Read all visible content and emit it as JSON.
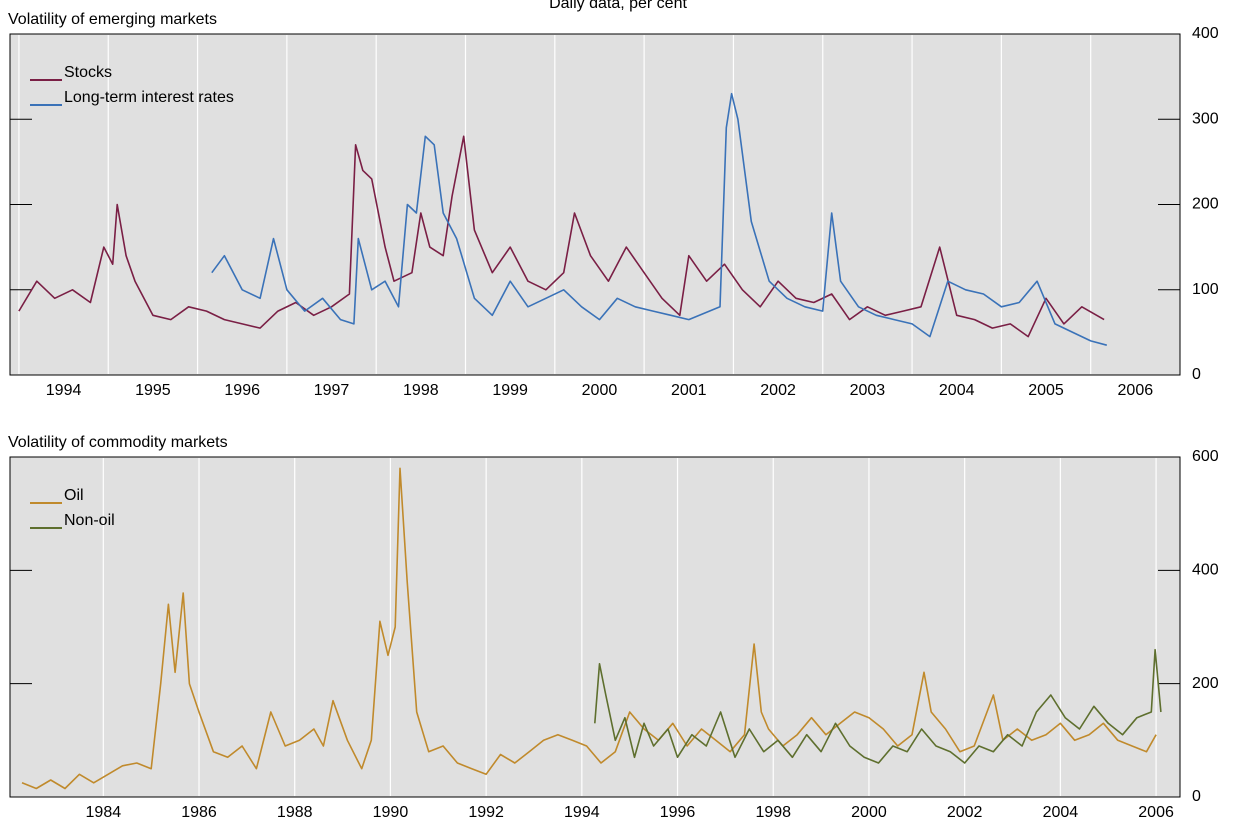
{
  "title": "Daily data, per cent",
  "chart_data": [
    {
      "type": "line",
      "title": "Volatility of emerging markets",
      "xlim": [
        1993.9,
        2007.0
      ],
      "xticks": [
        1994,
        1995,
        1996,
        1997,
        1998,
        1999,
        2000,
        2001,
        2002,
        2003,
        2004,
        2005,
        2006
      ],
      "tick_label_position": "between",
      "ylim": [
        0,
        400
      ],
      "yticks": [
        0,
        100,
        200,
        300,
        400
      ],
      "grid": "vertical",
      "legend": "upper left",
      "series": [
        {
          "name": "Stocks",
          "color": "#7a1f45",
          "x": [
            1994.0,
            1994.2,
            1994.4,
            1994.6,
            1994.8,
            1994.95,
            1995.05,
            1995.1,
            1995.2,
            1995.3,
            1995.5,
            1995.7,
            1995.9,
            1996.1,
            1996.3,
            1996.5,
            1996.7,
            1996.9,
            1997.1,
            1997.3,
            1997.5,
            1997.7,
            1997.77,
            1997.85,
            1997.95,
            1998.1,
            1998.2,
            1998.4,
            1998.5,
            1998.6,
            1998.75,
            1998.85,
            1998.98,
            1999.1,
            1999.3,
            1999.5,
            1999.7,
            1999.9,
            2000.1,
            2000.22,
            2000.4,
            2000.6,
            2000.8,
            2001.0,
            2001.2,
            2001.4,
            2001.5,
            2001.7,
            2001.9,
            2002.1,
            2002.3,
            2002.5,
            2002.7,
            2002.9,
            2003.1,
            2003.3,
            2003.5,
            2003.7,
            2003.9,
            2004.1,
            2004.31,
            2004.5,
            2004.7,
            2004.9,
            2005.1,
            2005.3,
            2005.5,
            2005.7,
            2005.9,
            2006.15
          ],
          "values": [
            75,
            110,
            90,
            100,
            85,
            150,
            130,
            200,
            140,
            110,
            70,
            65,
            80,
            75,
            65,
            60,
            55,
            75,
            85,
            70,
            80,
            95,
            270,
            240,
            230,
            150,
            110,
            120,
            190,
            150,
            140,
            210,
            280,
            170,
            120,
            150,
            110,
            100,
            120,
            190,
            140,
            110,
            150,
            120,
            90,
            70,
            140,
            110,
            130,
            100,
            80,
            110,
            90,
            85,
            95,
            65,
            80,
            70,
            75,
            80,
            150,
            70,
            65,
            55,
            60,
            45,
            90,
            60,
            80,
            65
          ]
        },
        {
          "name": "Long-term interest rates",
          "color": "#3a72b8",
          "x": [
            1996.16,
            1996.3,
            1996.5,
            1996.7,
            1996.85,
            1997.0,
            1997.2,
            1997.4,
            1997.6,
            1997.75,
            1997.8,
            1997.95,
            1998.1,
            1998.25,
            1998.35,
            1998.45,
            1998.55,
            1998.65,
            1998.75,
            1998.9,
            1999.1,
            1999.3,
            1999.5,
            1999.7,
            1999.9,
            2000.1,
            2000.3,
            2000.5,
            2000.7,
            2000.9,
            2001.1,
            2001.3,
            2001.5,
            2001.85,
            2001.92,
            2001.98,
            2002.05,
            2002.2,
            2002.4,
            2002.6,
            2002.8,
            2003.0,
            2003.1,
            2003.2,
            2003.4,
            2003.6,
            2003.8,
            2004.0,
            2004.2,
            2004.4,
            2004.6,
            2004.8,
            2005.0,
            2005.2,
            2005.4,
            2005.6,
            2005.8,
            2006.0,
            2006.18
          ],
          "values": [
            120,
            140,
            100,
            90,
            160,
            100,
            75,
            90,
            65,
            60,
            160,
            100,
            110,
            80,
            200,
            190,
            280,
            270,
            190,
            160,
            90,
            70,
            110,
            80,
            90,
            100,
            80,
            65,
            90,
            80,
            75,
            70,
            65,
            80,
            290,
            330,
            300,
            180,
            110,
            90,
            80,
            75,
            190,
            110,
            80,
            70,
            65,
            60,
            45,
            110,
            100,
            95,
            80,
            85,
            110,
            60,
            50,
            40,
            35
          ]
        }
      ]
    },
    {
      "type": "line",
      "title": "Volatility of commodity markets",
      "xlim": [
        1982.05,
        2006.5
      ],
      "xticks": [
        1984,
        1986,
        1988,
        1990,
        1992,
        1994,
        1996,
        1998,
        2000,
        2002,
        2004,
        2006
      ],
      "tick_label_position": "on",
      "ylim": [
        0,
        600
      ],
      "yticks": [
        0,
        200,
        400,
        600
      ],
      "grid": "vertical",
      "legend": "upper left",
      "series": [
        {
          "name": "Oil",
          "color": "#c08a2c",
          "x": [
            1982.3,
            1982.6,
            1982.9,
            1983.2,
            1983.5,
            1983.8,
            1984.1,
            1984.4,
            1984.7,
            1985.0,
            1985.2,
            1985.36,
            1985.5,
            1985.67,
            1985.8,
            1986.0,
            1986.3,
            1986.6,
            1986.9,
            1987.2,
            1987.5,
            1987.8,
            1988.1,
            1988.4,
            1988.6,
            1988.8,
            1989.1,
            1989.4,
            1989.6,
            1989.78,
            1989.95,
            1990.1,
            1990.2,
            1990.35,
            1990.55,
            1990.8,
            1991.1,
            1991.4,
            1991.7,
            1992.0,
            1992.3,
            1992.6,
            1992.9,
            1993.2,
            1993.5,
            1993.8,
            1994.1,
            1994.4,
            1994.7,
            1995.0,
            1995.3,
            1995.6,
            1995.9,
            1996.2,
            1996.5,
            1996.8,
            1997.1,
            1997.4,
            1997.6,
            1997.75,
            1997.9,
            1998.2,
            1998.5,
            1998.8,
            1999.1,
            1999.4,
            1999.7,
            2000.0,
            2000.3,
            2000.6,
            2000.9,
            2001.15,
            2001.3,
            2001.6,
            2001.9,
            2002.2,
            2002.6,
            2002.8,
            2003.1,
            2003.4,
            2003.7,
            2004.0,
            2004.3,
            2004.6,
            2004.9,
            2005.2,
            2005.5,
            2005.8,
            2006.0
          ],
          "values": [
            25,
            15,
            30,
            15,
            40,
            25,
            40,
            55,
            60,
            50,
            200,
            340,
            220,
            360,
            200,
            150,
            80,
            70,
            90,
            50,
            150,
            90,
            100,
            120,
            90,
            170,
            100,
            50,
            100,
            310,
            250,
            300,
            580,
            380,
            150,
            80,
            90,
            60,
            50,
            40,
            75,
            60,
            80,
            100,
            110,
            100,
            90,
            60,
            80,
            150,
            120,
            100,
            130,
            90,
            120,
            100,
            80,
            110,
            270,
            150,
            120,
            90,
            110,
            140,
            110,
            130,
            150,
            140,
            120,
            90,
            110,
            220,
            150,
            120,
            80,
            90,
            180,
            100,
            120,
            100,
            110,
            130,
            100,
            110,
            130,
            100,
            90,
            80,
            110
          ]
        },
        {
          "name": "Non-oil",
          "color": "#5e6f2e",
          "x": [
            1994.27,
            1994.37,
            1994.5,
            1994.7,
            1994.9,
            1995.1,
            1995.3,
            1995.5,
            1995.8,
            1996.0,
            1996.3,
            1996.6,
            1996.9,
            1997.2,
            1997.5,
            1997.8,
            1998.1,
            1998.4,
            1998.7,
            1999.0,
            1999.3,
            1999.6,
            1999.9,
            2000.2,
            2000.5,
            2000.8,
            2001.1,
            2001.4,
            2001.7,
            2002.0,
            2002.3,
            2002.6,
            2002.9,
            2003.2,
            2003.5,
            2003.8,
            2004.1,
            2004.4,
            2004.7,
            2005.0,
            2005.3,
            2005.6,
            2005.9,
            2005.98,
            2006.1
          ],
          "values": [
            130,
            235,
            180,
            100,
            140,
            70,
            130,
            90,
            120,
            70,
            110,
            90,
            150,
            70,
            120,
            80,
            100,
            70,
            110,
            80,
            130,
            90,
            70,
            60,
            90,
            80,
            120,
            90,
            80,
            60,
            90,
            80,
            110,
            90,
            150,
            180,
            140,
            120,
            160,
            130,
            110,
            140,
            150,
            260,
            150
          ]
        }
      ]
    }
  ]
}
